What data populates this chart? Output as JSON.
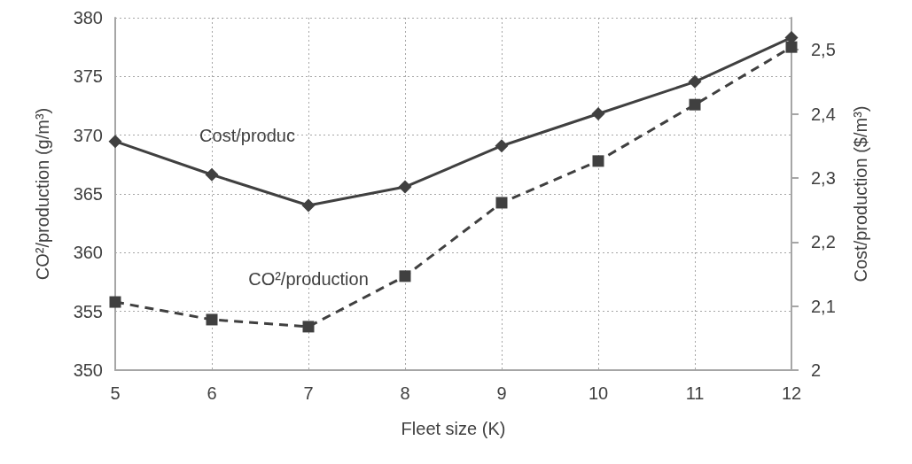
{
  "chart_data": {
    "type": "line",
    "xlabel": "Fleet size (K)",
    "ylabel": "CO²/production (g/m³)",
    "y2label": "Cost/production ($/m³)",
    "x": [
      5,
      6,
      7,
      8,
      9,
      10,
      11,
      12
    ],
    "xlim": [
      5,
      12
    ],
    "xticks": [
      5,
      6,
      7,
      8,
      9,
      10,
      11,
      12
    ],
    "ylim": [
      350,
      380
    ],
    "yticks": [
      350,
      355,
      360,
      365,
      370,
      375,
      380
    ],
    "y2lim": [
      2,
      2.55
    ],
    "y2ticks": [
      2,
      {
        "value": 2.1,
        "label": "2,1"
      },
      {
        "value": 2.2,
        "label": "2,2"
      },
      {
        "value": 2.3,
        "label": "2,3"
      },
      {
        "value": 2.4,
        "label": "2,4"
      },
      {
        "value": 2.5,
        "label": "2,5"
      }
    ],
    "grid": true,
    "legend": false,
    "series": [
      {
        "name": "Cost/produc",
        "color": "#404040",
        "axis": "y2",
        "marker": "diamond",
        "line_style": "solid",
        "values": [
          2.357,
          2.305,
          2.257,
          2.286,
          2.35,
          2.4,
          2.45,
          2.519
        ]
      },
      {
        "name": "CO²/production",
        "color": "#404040",
        "marker": "square",
        "line_style": "dashed",
        "values": [
          355.8,
          354.3,
          353.7,
          358.0,
          364.25,
          367.8,
          372.6,
          377.5
        ]
      }
    ]
  }
}
